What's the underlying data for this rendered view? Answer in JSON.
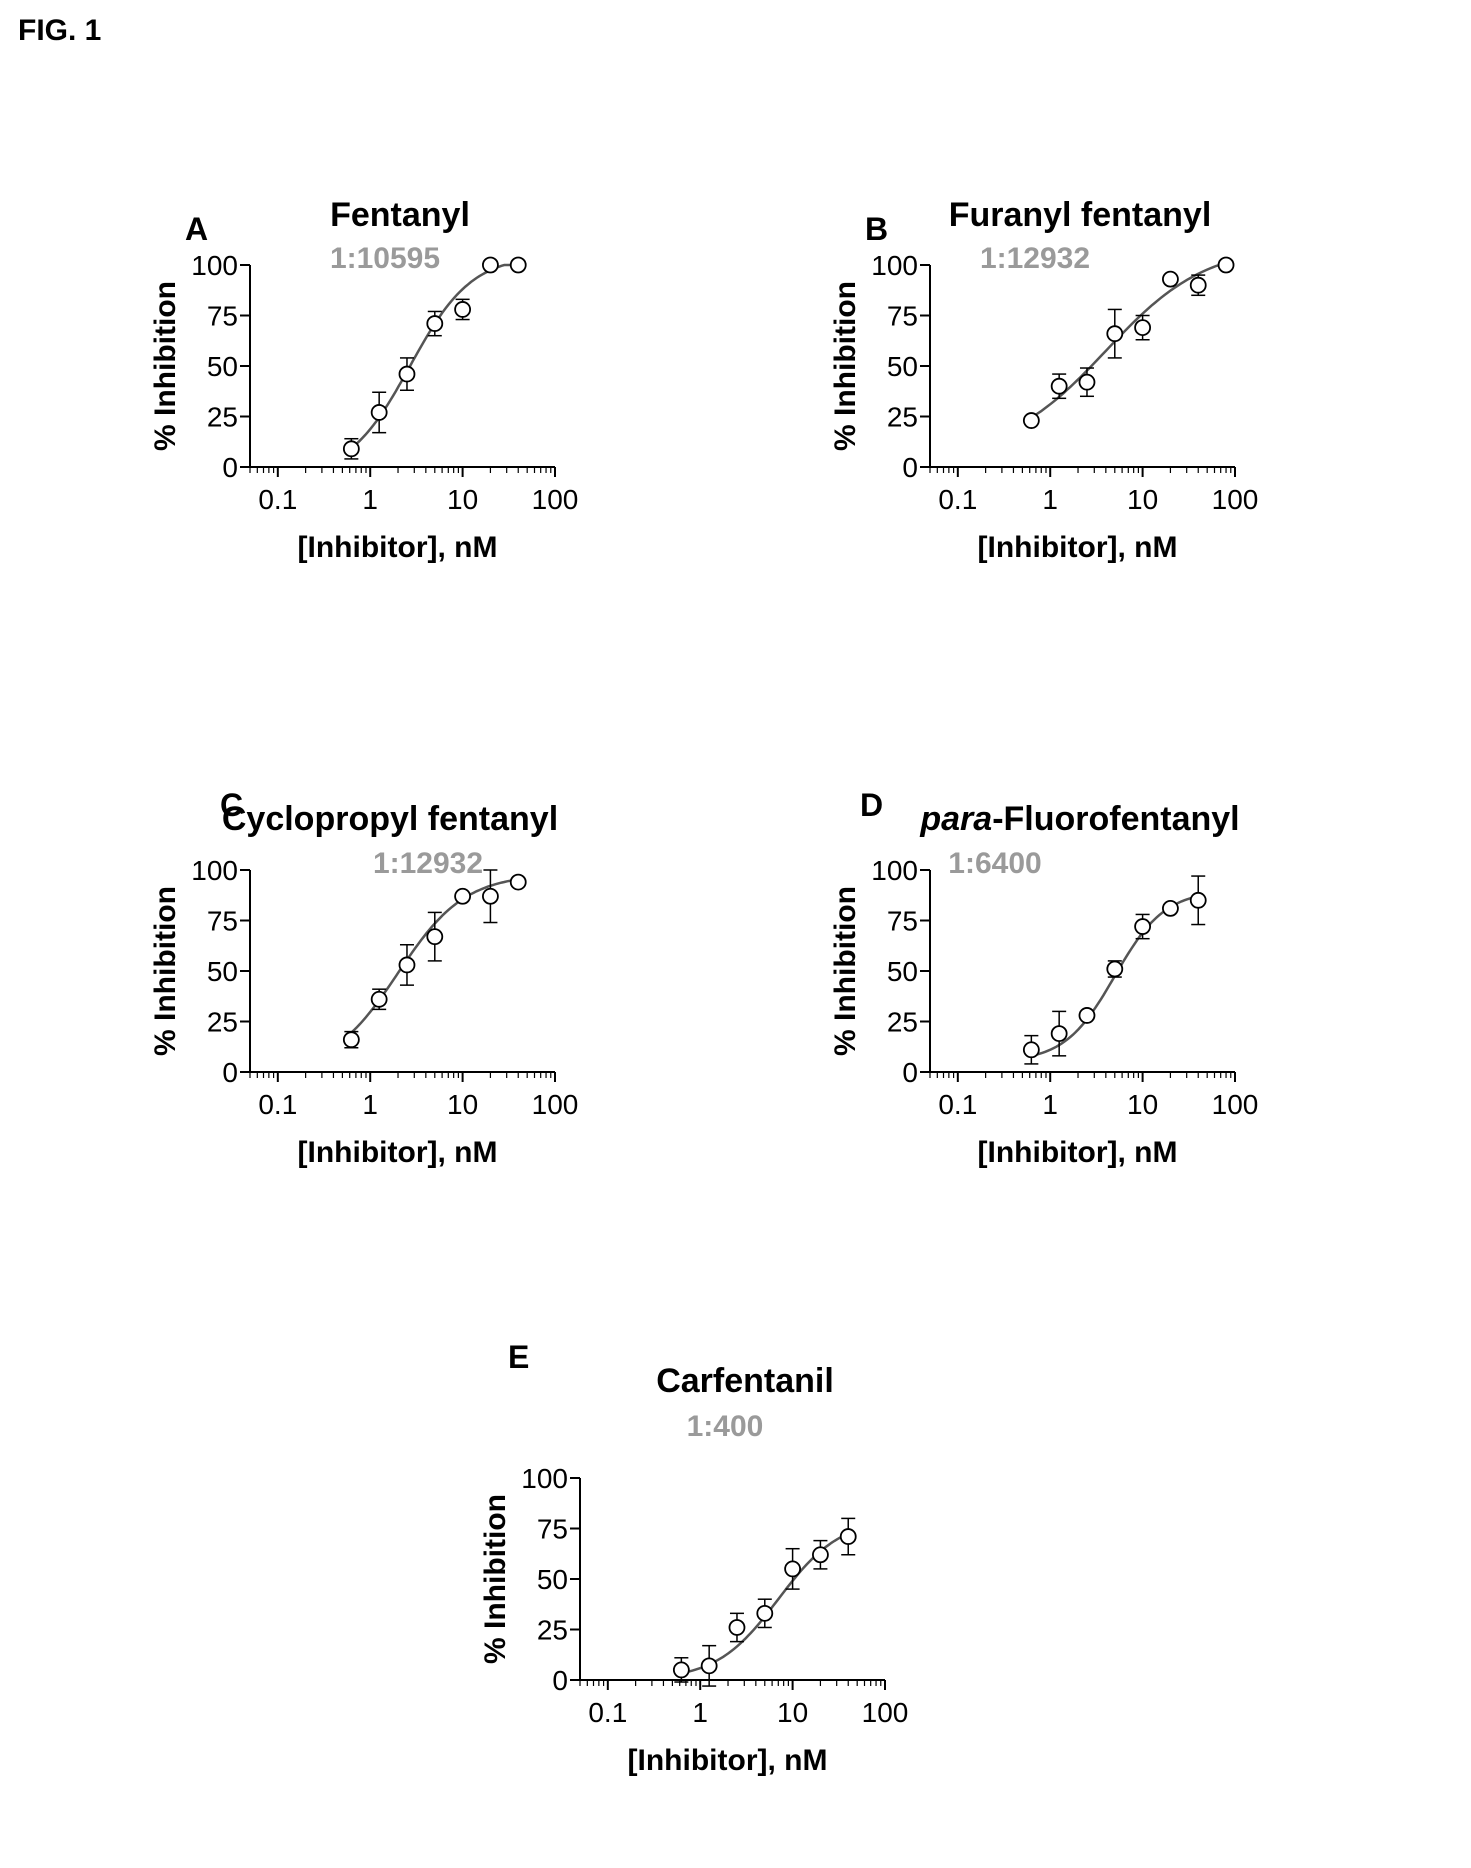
{
  "figure_label": "FIG. 1",
  "chart_data": [
    {
      "type": "scatter",
      "panel_letter": "A",
      "title": "Fentanyl",
      "subtitle": "1:10595",
      "xlabel": "[Inhibitor], nM",
      "ylabel": "% Inhibition",
      "x_scale": "log",
      "xlim": [
        0.05,
        100
      ],
      "ylim": [
        0,
        100
      ],
      "x_ticks": [
        "0.1",
        "1",
        "10",
        "100"
      ],
      "y_ticks": [
        "0",
        "25",
        "50",
        "75",
        "100"
      ],
      "grid": false,
      "legend": "none",
      "series": [
        {
          "x": [
            0.625,
            1.25,
            2.5,
            5,
            10,
            20,
            40
          ],
          "y": [
            9,
            27,
            46,
            71,
            78,
            100,
            100
          ],
          "error": [
            5,
            10,
            8,
            6,
            5,
            0,
            0
          ],
          "fit_curve": true
        }
      ]
    },
    {
      "type": "scatter",
      "panel_letter": "B",
      "title": "Furanyl fentanyl",
      "subtitle": "1:12932",
      "xlabel": "[Inhibitor], nM",
      "ylabel": "% Inhibition",
      "x_scale": "log",
      "xlim": [
        0.05,
        100
      ],
      "ylim": [
        0,
        100
      ],
      "x_ticks": [
        "0.1",
        "1",
        "10",
        "100"
      ],
      "y_ticks": [
        "0",
        "25",
        "50",
        "75",
        "100"
      ],
      "grid": false,
      "legend": "none",
      "series": [
        {
          "x": [
            0.625,
            1.25,
            2.5,
            5,
            10,
            20,
            40,
            80
          ],
          "y": [
            23,
            40,
            42,
            66,
            69,
            93,
            90,
            100
          ],
          "error": [
            0,
            6,
            7,
            12,
            6,
            0,
            5,
            0
          ],
          "fit_curve": true
        }
      ]
    },
    {
      "type": "scatter",
      "panel_letter": "C",
      "title": "Cyclopropyl fentanyl",
      "subtitle": "1:12932",
      "xlabel": "[Inhibitor], nM",
      "ylabel": "% Inhibition",
      "x_scale": "log",
      "xlim": [
        0.05,
        100
      ],
      "ylim": [
        0,
        100
      ],
      "x_ticks": [
        "0.1",
        "1",
        "10",
        "100"
      ],
      "y_ticks": [
        "0",
        "25",
        "50",
        "75",
        "100"
      ],
      "grid": false,
      "legend": "none",
      "series": [
        {
          "x": [
            0.625,
            1.25,
            2.5,
            5,
            10,
            20,
            40
          ],
          "y": [
            16,
            36,
            53,
            67,
            87,
            87,
            94
          ],
          "error": [
            4,
            5,
            10,
            12,
            0,
            13,
            0
          ],
          "fit_curve": true
        }
      ]
    },
    {
      "type": "scatter",
      "panel_letter": "D",
      "title_emphasis": "para",
      "title": "-Fluorofentanyl",
      "subtitle": "1:6400",
      "xlabel": "[Inhibitor], nM",
      "ylabel": "% Inhibition",
      "x_scale": "log",
      "xlim": [
        0.05,
        100
      ],
      "ylim": [
        0,
        100
      ],
      "x_ticks": [
        "0.1",
        "1",
        "10",
        "100"
      ],
      "y_ticks": [
        "0",
        "25",
        "50",
        "75",
        "100"
      ],
      "grid": false,
      "legend": "none",
      "series": [
        {
          "x": [
            0.625,
            1.25,
            2.5,
            5,
            10,
            20,
            40
          ],
          "y": [
            11,
            19,
            28,
            51,
            72,
            81,
            85
          ],
          "error": [
            7,
            11,
            0,
            4,
            6,
            0,
            12
          ],
          "fit_curve": true
        }
      ]
    },
    {
      "type": "scatter",
      "panel_letter": "E",
      "title": "Carfentanil",
      "subtitle": "1:400",
      "xlabel": "[Inhibitor], nM",
      "ylabel": "% Inhibition",
      "x_scale": "log",
      "xlim": [
        0.05,
        100
      ],
      "ylim": [
        0,
        100
      ],
      "x_ticks": [
        "0.1",
        "1",
        "10",
        "100"
      ],
      "y_ticks": [
        "0",
        "25",
        "50",
        "75",
        "100"
      ],
      "grid": false,
      "legend": "none",
      "series": [
        {
          "x": [
            0.625,
            1.25,
            2.5,
            5,
            10,
            20,
            40
          ],
          "y": [
            5,
            7,
            26,
            33,
            55,
            62,
            71
          ],
          "error": [
            6,
            10,
            7,
            7,
            10,
            7,
            9
          ],
          "fit_curve": true
        }
      ]
    }
  ]
}
